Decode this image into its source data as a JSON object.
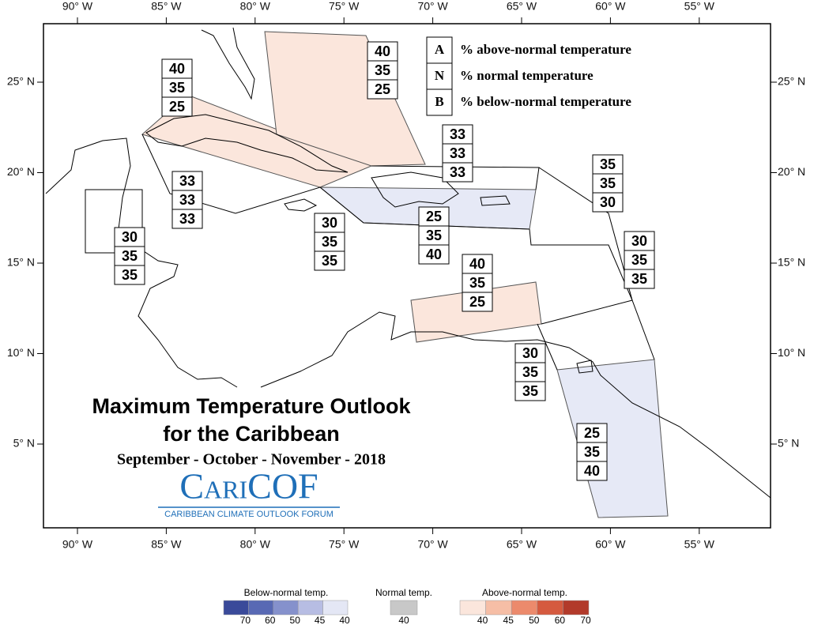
{
  "axes": {
    "top": [
      "90° W",
      "85° W",
      "80° W",
      "75° W",
      "70° W",
      "65° W",
      "60° W",
      "55° W"
    ],
    "bottom": [
      "90° W",
      "85° W",
      "80° W",
      "75° W",
      "70° W",
      "65° W",
      "60° W",
      "55° W"
    ],
    "left": [
      "25° N",
      "20° N",
      "15° N",
      "10° N",
      "5° N"
    ],
    "right": [
      "25° N",
      "20° N",
      "15° N",
      "10° N",
      "5° N"
    ]
  },
  "legend": {
    "rows": [
      {
        "key": "A",
        "text": "% above-normal temperature"
      },
      {
        "key": "N",
        "text": "% normal temperature"
      },
      {
        "key": "B",
        "text": "% below-normal temperature"
      }
    ]
  },
  "regions": [
    [
      40,
      35,
      25
    ],
    [
      40,
      35,
      25
    ],
    [
      33,
      33,
      33
    ],
    [
      33,
      33,
      33
    ],
    [
      30,
      35,
      35
    ],
    [
      30,
      35,
      35
    ],
    [
      25,
      35,
      40
    ],
    [
      35,
      35,
      30
    ],
    [
      30,
      35,
      35
    ],
    [
      40,
      35,
      25
    ],
    [
      30,
      35,
      35
    ],
    [
      25,
      35,
      40
    ]
  ],
  "title": {
    "line1": "Maximum Temperature Outlook",
    "line2": "for the Caribbean",
    "period": "September - October - November - 2018"
  },
  "logo": {
    "name": "CariCOF",
    "subtitle": "CARIBBEAN CLIMATE OUTLOOK FORUM"
  },
  "colorbar": {
    "below": {
      "label": "Below-normal temp.",
      "ticks": [
        70,
        60,
        50,
        45,
        40
      ]
    },
    "normal": {
      "label": "Normal temp.",
      "ticks": [
        40
      ]
    },
    "above": {
      "label": "Above-normal temp.",
      "ticks": [
        40,
        45,
        50,
        60,
        70
      ]
    }
  }
}
